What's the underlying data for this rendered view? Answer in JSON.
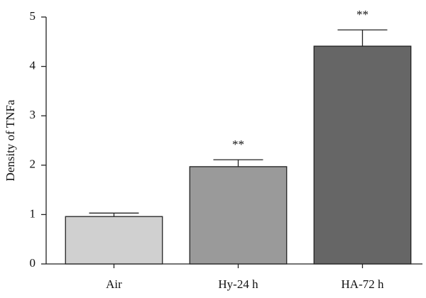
{
  "chart_data": {
    "type": "bar",
    "ylabel": "Density of TNFa",
    "categories": [
      "Air",
      "Hy-24 h",
      "HA-72 h"
    ],
    "values": [
      0.96,
      1.97,
      4.41
    ],
    "errors": [
      0.07,
      0.14,
      0.33
    ],
    "colors": [
      "#d0d0d0",
      "#9a9a9a",
      "#666666"
    ],
    "annotations": [
      null,
      "**",
      "**"
    ],
    "ylim": [
      0,
      5
    ],
    "yticks": [
      0,
      1,
      2,
      3,
      4,
      5
    ],
    "grid": false
  }
}
